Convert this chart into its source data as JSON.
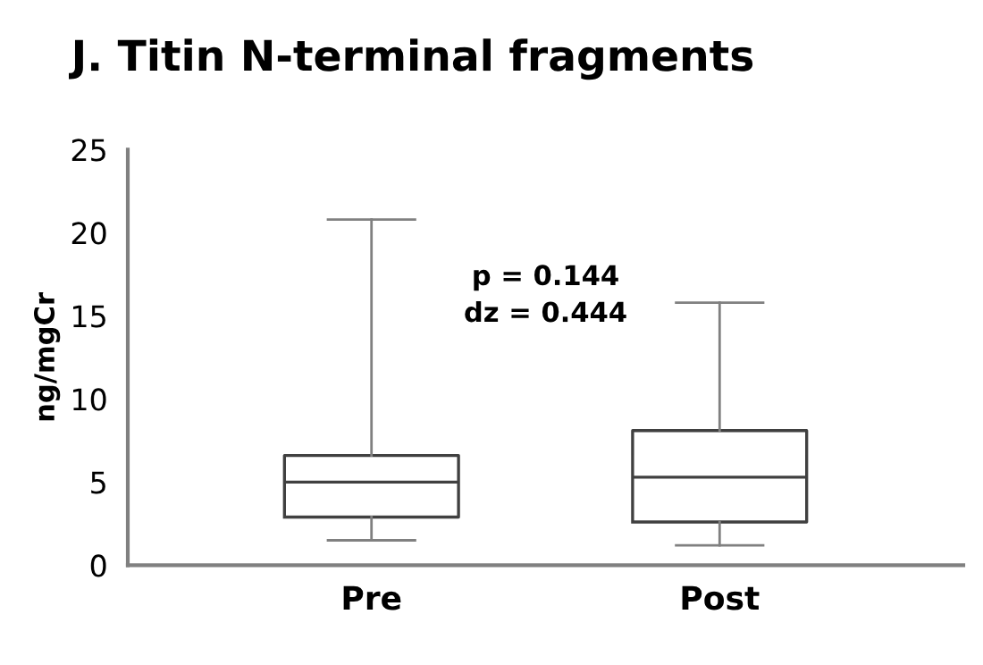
{
  "chart_data": {
    "type": "box",
    "title": "J. Titin N-terminal fragments",
    "ylabel": "ng/mgCr",
    "categories": [
      "Pre",
      "Post"
    ],
    "boxes": [
      {
        "low": 1.5,
        "q1": 2.9,
        "median": 5.0,
        "q3": 6.6,
        "high": 20.8
      },
      {
        "low": 1.2,
        "q1": 2.6,
        "median": 5.3,
        "q3": 8.1,
        "high": 15.8
      }
    ],
    "ylim": [
      0,
      25
    ],
    "yticks": [
      0,
      5,
      10,
      15,
      20,
      25
    ],
    "grid": false,
    "annotations": [
      "p = 0.144\ndz = 0.444"
    ]
  }
}
